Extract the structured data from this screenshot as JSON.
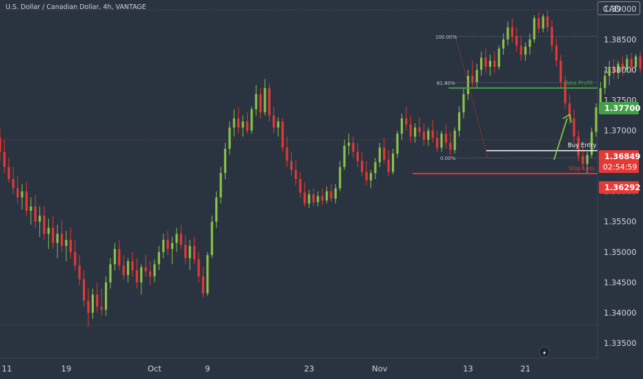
{
  "header": {
    "symbol_title": "U.S. Dollar / Canadian Dollar, 4h, VANTAGE",
    "currency": "CAD"
  },
  "colors": {
    "background": "#2a3340",
    "bull": "#8bc34a",
    "bear": "#e53935",
    "axis_text": "#d1d4dc",
    "take_profit": "#43a047",
    "stop_loss": "#e53935"
  },
  "price_axis": {
    "ticks": [
      "1.39000",
      "1.38500",
      "1.38000",
      "1.37500",
      "1.37000",
      "1.36500",
      "1.36000",
      "1.35500",
      "1.35000",
      "1.34500",
      "1.34000",
      "1.33500"
    ],
    "take_profit_tag": "1.37700",
    "current_price_tag": "1.36849",
    "countdown": "02:54:59",
    "stop_loss_tag": "1.36292"
  },
  "time_axis": {
    "labels": [
      "11",
      "19",
      "Oct",
      "9",
      "23",
      "Nov",
      "13",
      "21"
    ]
  },
  "chart_data": {
    "type": "candlestick",
    "symbol": "U.S. Dollar / Canadian Dollar",
    "timeframe": "4h",
    "source": "VANTAGE",
    "ylim": [
      1.3325,
      1.3915
    ],
    "grid": false,
    "candles": [
      {
        "o": 1.3688,
        "h": 1.3705,
        "l": 1.365,
        "c": 1.3665
      },
      {
        "o": 1.3665,
        "h": 1.3685,
        "l": 1.363,
        "c": 1.364
      },
      {
        "o": 1.364,
        "h": 1.3655,
        "l": 1.3615,
        "c": 1.362
      },
      {
        "o": 1.362,
        "h": 1.364,
        "l": 1.3595,
        "c": 1.3605
      },
      {
        "o": 1.3605,
        "h": 1.3625,
        "l": 1.358,
        "c": 1.359
      },
      {
        "o": 1.359,
        "h": 1.3612,
        "l": 1.357,
        "c": 1.36
      },
      {
        "o": 1.36,
        "h": 1.3615,
        "l": 1.356,
        "c": 1.3568
      },
      {
        "o": 1.3568,
        "h": 1.359,
        "l": 1.3545,
        "c": 1.3575
      },
      {
        "o": 1.3575,
        "h": 1.3595,
        "l": 1.354,
        "c": 1.355
      },
      {
        "o": 1.355,
        "h": 1.3575,
        "l": 1.3525,
        "c": 1.356
      },
      {
        "o": 1.356,
        "h": 1.3575,
        "l": 1.352,
        "c": 1.353
      },
      {
        "o": 1.353,
        "h": 1.3555,
        "l": 1.3505,
        "c": 1.354
      },
      {
        "o": 1.354,
        "h": 1.356,
        "l": 1.3505,
        "c": 1.3515
      },
      {
        "o": 1.3515,
        "h": 1.3545,
        "l": 1.349,
        "c": 1.353
      },
      {
        "o": 1.353,
        "h": 1.3552,
        "l": 1.35,
        "c": 1.351
      },
      {
        "o": 1.351,
        "h": 1.3535,
        "l": 1.3485,
        "c": 1.352
      },
      {
        "o": 1.352,
        "h": 1.354,
        "l": 1.349,
        "c": 1.35
      },
      {
        "o": 1.35,
        "h": 1.352,
        "l": 1.347,
        "c": 1.3478
      },
      {
        "o": 1.3478,
        "h": 1.3495,
        "l": 1.3445,
        "c": 1.3455
      },
      {
        "o": 1.3455,
        "h": 1.347,
        "l": 1.341,
        "c": 1.342
      },
      {
        "o": 1.342,
        "h": 1.344,
        "l": 1.3378,
        "c": 1.34
      },
      {
        "o": 1.34,
        "h": 1.344,
        "l": 1.339,
        "c": 1.343
      },
      {
        "o": 1.343,
        "h": 1.345,
        "l": 1.34,
        "c": 1.341
      },
      {
        "o": 1.341,
        "h": 1.344,
        "l": 1.3395,
        "c": 1.3405
      },
      {
        "o": 1.3405,
        "h": 1.346,
        "l": 1.3395,
        "c": 1.345
      },
      {
        "o": 1.345,
        "h": 1.349,
        "l": 1.344,
        "c": 1.348
      },
      {
        "o": 1.348,
        "h": 1.3515,
        "l": 1.347,
        "c": 1.3505
      },
      {
        "o": 1.3505,
        "h": 1.352,
        "l": 1.347,
        "c": 1.3478
      },
      {
        "o": 1.3478,
        "h": 1.3495,
        "l": 1.3455,
        "c": 1.3462
      },
      {
        "o": 1.3462,
        "h": 1.349,
        "l": 1.345,
        "c": 1.3485
      },
      {
        "o": 1.3485,
        "h": 1.35,
        "l": 1.346,
        "c": 1.347
      },
      {
        "o": 1.347,
        "h": 1.349,
        "l": 1.344,
        "c": 1.345
      },
      {
        "o": 1.345,
        "h": 1.348,
        "l": 1.343,
        "c": 1.3475
      },
      {
        "o": 1.3475,
        "h": 1.3495,
        "l": 1.346,
        "c": 1.3468
      },
      {
        "o": 1.3468,
        "h": 1.3485,
        "l": 1.3445,
        "c": 1.346
      },
      {
        "o": 1.346,
        "h": 1.3488,
        "l": 1.345,
        "c": 1.348
      },
      {
        "o": 1.348,
        "h": 1.351,
        "l": 1.347,
        "c": 1.35
      },
      {
        "o": 1.35,
        "h": 1.353,
        "l": 1.349,
        "c": 1.352
      },
      {
        "o": 1.352,
        "h": 1.3535,
        "l": 1.3495,
        "c": 1.3505
      },
      {
        "o": 1.3505,
        "h": 1.3525,
        "l": 1.348,
        "c": 1.3515
      },
      {
        "o": 1.3515,
        "h": 1.354,
        "l": 1.35,
        "c": 1.353
      },
      {
        "o": 1.353,
        "h": 1.3545,
        "l": 1.3505,
        "c": 1.3512
      },
      {
        "o": 1.3512,
        "h": 1.3528,
        "l": 1.348,
        "c": 1.349
      },
      {
        "o": 1.349,
        "h": 1.352,
        "l": 1.347,
        "c": 1.351
      },
      {
        "o": 1.351,
        "h": 1.3525,
        "l": 1.348,
        "c": 1.3488
      },
      {
        "o": 1.3488,
        "h": 1.35,
        "l": 1.345,
        "c": 1.346
      },
      {
        "o": 1.346,
        "h": 1.3475,
        "l": 1.3425,
        "c": 1.3432
      },
      {
        "o": 1.3432,
        "h": 1.35,
        "l": 1.3428,
        "c": 1.3495
      },
      {
        "o": 1.3495,
        "h": 1.356,
        "l": 1.349,
        "c": 1.355
      },
      {
        "o": 1.355,
        "h": 1.36,
        "l": 1.354,
        "c": 1.359
      },
      {
        "o": 1.359,
        "h": 1.364,
        "l": 1.358,
        "c": 1.363
      },
      {
        "o": 1.363,
        "h": 1.368,
        "l": 1.362,
        "c": 1.367
      },
      {
        "o": 1.367,
        "h": 1.3715,
        "l": 1.366,
        "c": 1.3705
      },
      {
        "o": 1.3705,
        "h": 1.3735,
        "l": 1.369,
        "c": 1.372
      },
      {
        "o": 1.372,
        "h": 1.3738,
        "l": 1.3695,
        "c": 1.3705
      },
      {
        "o": 1.3705,
        "h": 1.3725,
        "l": 1.369,
        "c": 1.3715
      },
      {
        "o": 1.3715,
        "h": 1.373,
        "l": 1.3695,
        "c": 1.37
      },
      {
        "o": 1.37,
        "h": 1.374,
        "l": 1.3695,
        "c": 1.3735
      },
      {
        "o": 1.3735,
        "h": 1.3775,
        "l": 1.3725,
        "c": 1.376
      },
      {
        "o": 1.376,
        "h": 1.377,
        "l": 1.372,
        "c": 1.373
      },
      {
        "o": 1.373,
        "h": 1.3785,
        "l": 1.3725,
        "c": 1.377
      },
      {
        "o": 1.377,
        "h": 1.3778,
        "l": 1.3715,
        "c": 1.3725
      },
      {
        "o": 1.3725,
        "h": 1.374,
        "l": 1.3695,
        "c": 1.3705
      },
      {
        "o": 1.3705,
        "h": 1.3722,
        "l": 1.369,
        "c": 1.3715
      },
      {
        "o": 1.3715,
        "h": 1.372,
        "l": 1.3665,
        "c": 1.3672
      },
      {
        "o": 1.3672,
        "h": 1.369,
        "l": 1.364,
        "c": 1.365
      },
      {
        "o": 1.365,
        "h": 1.3665,
        "l": 1.3625,
        "c": 1.3635
      },
      {
        "o": 1.3635,
        "h": 1.3652,
        "l": 1.361,
        "c": 1.362
      },
      {
        "o": 1.362,
        "h": 1.3632,
        "l": 1.359,
        "c": 1.3598
      },
      {
        "o": 1.3598,
        "h": 1.3615,
        "l": 1.3575,
        "c": 1.358
      },
      {
        "o": 1.358,
        "h": 1.3602,
        "l": 1.3572,
        "c": 1.3595
      },
      {
        "o": 1.3595,
        "h": 1.3605,
        "l": 1.3575,
        "c": 1.3582
      },
      {
        "o": 1.3582,
        "h": 1.36,
        "l": 1.3575,
        "c": 1.3592
      },
      {
        "o": 1.3592,
        "h": 1.3605,
        "l": 1.3578,
        "c": 1.3585
      },
      {
        "o": 1.3585,
        "h": 1.3608,
        "l": 1.358,
        "c": 1.36
      },
      {
        "o": 1.36,
        "h": 1.3612,
        "l": 1.3582,
        "c": 1.3588
      },
      {
        "o": 1.3588,
        "h": 1.3612,
        "l": 1.358,
        "c": 1.3605
      },
      {
        "o": 1.3605,
        "h": 1.365,
        "l": 1.36,
        "c": 1.364
      },
      {
        "o": 1.364,
        "h": 1.3685,
        "l": 1.3635,
        "c": 1.3675
      },
      {
        "o": 1.3675,
        "h": 1.3695,
        "l": 1.366,
        "c": 1.368
      },
      {
        "o": 1.368,
        "h": 1.369,
        "l": 1.3655,
        "c": 1.3665
      },
      {
        "o": 1.3665,
        "h": 1.368,
        "l": 1.364,
        "c": 1.365
      },
      {
        "o": 1.365,
        "h": 1.3665,
        "l": 1.3625,
        "c": 1.3632
      },
      {
        "o": 1.3632,
        "h": 1.365,
        "l": 1.361,
        "c": 1.3618
      },
      {
        "o": 1.3618,
        "h": 1.3635,
        "l": 1.3605,
        "c": 1.363
      },
      {
        "o": 1.363,
        "h": 1.3655,
        "l": 1.362,
        "c": 1.3648
      },
      {
        "o": 1.3648,
        "h": 1.368,
        "l": 1.364,
        "c": 1.3672
      },
      {
        "o": 1.3672,
        "h": 1.3688,
        "l": 1.3645,
        "c": 1.3652
      },
      {
        "o": 1.3652,
        "h": 1.3668,
        "l": 1.3625,
        "c": 1.3632
      },
      {
        "o": 1.3632,
        "h": 1.367,
        "l": 1.3628,
        "c": 1.3662
      },
      {
        "o": 1.3662,
        "h": 1.37,
        "l": 1.3655,
        "c": 1.3695
      },
      {
        "o": 1.3695,
        "h": 1.3728,
        "l": 1.3685,
        "c": 1.372
      },
      {
        "o": 1.372,
        "h": 1.374,
        "l": 1.37,
        "c": 1.371
      },
      {
        "o": 1.371,
        "h": 1.3725,
        "l": 1.368,
        "c": 1.369
      },
      {
        "o": 1.369,
        "h": 1.3712,
        "l": 1.368,
        "c": 1.3705
      },
      {
        "o": 1.3705,
        "h": 1.3722,
        "l": 1.369,
        "c": 1.3698
      },
      {
        "o": 1.3698,
        "h": 1.3712,
        "l": 1.3675,
        "c": 1.3685
      },
      {
        "o": 1.3685,
        "h": 1.3705,
        "l": 1.3675,
        "c": 1.37
      },
      {
        "o": 1.37,
        "h": 1.3718,
        "l": 1.368,
        "c": 1.3688
      },
      {
        "o": 1.3688,
        "h": 1.37,
        "l": 1.3665,
        "c": 1.3672
      },
      {
        "o": 1.3672,
        "h": 1.37,
        "l": 1.3665,
        "c": 1.3695
      },
      {
        "o": 1.3695,
        "h": 1.371,
        "l": 1.367,
        "c": 1.368
      },
      {
        "o": 1.368,
        "h": 1.3698,
        "l": 1.366,
        "c": 1.3668
      },
      {
        "o": 1.3668,
        "h": 1.3705,
        "l": 1.3662,
        "c": 1.37
      },
      {
        "o": 1.37,
        "h": 1.374,
        "l": 1.369,
        "c": 1.373
      },
      {
        "o": 1.373,
        "h": 1.377,
        "l": 1.372,
        "c": 1.376
      },
      {
        "o": 1.376,
        "h": 1.38,
        "l": 1.375,
        "c": 1.379
      },
      {
        "o": 1.379,
        "h": 1.3815,
        "l": 1.3772,
        "c": 1.378
      },
      {
        "o": 1.378,
        "h": 1.381,
        "l": 1.377,
        "c": 1.38
      },
      {
        "o": 1.38,
        "h": 1.383,
        "l": 1.379,
        "c": 1.382
      },
      {
        "o": 1.382,
        "h": 1.3835,
        "l": 1.3795,
        "c": 1.3805
      },
      {
        "o": 1.3805,
        "h": 1.3825,
        "l": 1.379,
        "c": 1.3815
      },
      {
        "o": 1.3815,
        "h": 1.383,
        "l": 1.3795,
        "c": 1.3805
      },
      {
        "o": 1.3805,
        "h": 1.384,
        "l": 1.38,
        "c": 1.3835
      },
      {
        "o": 1.3835,
        "h": 1.386,
        "l": 1.3825,
        "c": 1.385
      },
      {
        "o": 1.385,
        "h": 1.388,
        "l": 1.384,
        "c": 1.387
      },
      {
        "o": 1.387,
        "h": 1.3885,
        "l": 1.3845,
        "c": 1.3855
      },
      {
        "o": 1.3855,
        "h": 1.387,
        "l": 1.383,
        "c": 1.384
      },
      {
        "o": 1.384,
        "h": 1.3855,
        "l": 1.3815,
        "c": 1.3825
      },
      {
        "o": 1.3825,
        "h": 1.3845,
        "l": 1.3815,
        "c": 1.3838
      },
      {
        "o": 1.3838,
        "h": 1.386,
        "l": 1.3825,
        "c": 1.385
      },
      {
        "o": 1.385,
        "h": 1.389,
        "l": 1.3845,
        "c": 1.3885
      },
      {
        "o": 1.3885,
        "h": 1.3895,
        "l": 1.386,
        "c": 1.3868
      },
      {
        "o": 1.3868,
        "h": 1.3892,
        "l": 1.3862,
        "c": 1.3888
      },
      {
        "o": 1.3888,
        "h": 1.3898,
        "l": 1.3862,
        "c": 1.387
      },
      {
        "o": 1.387,
        "h": 1.3882,
        "l": 1.383,
        "c": 1.384
      },
      {
        "o": 1.384,
        "h": 1.3852,
        "l": 1.3805,
        "c": 1.3815
      },
      {
        "o": 1.3815,
        "h": 1.3825,
        "l": 1.377,
        "c": 1.378
      },
      {
        "o": 1.378,
        "h": 1.379,
        "l": 1.3735,
        "c": 1.3745
      },
      {
        "o": 1.3745,
        "h": 1.376,
        "l": 1.371,
        "c": 1.372
      },
      {
        "o": 1.372,
        "h": 1.3735,
        "l": 1.368,
        "c": 1.369
      },
      {
        "o": 1.369,
        "h": 1.37,
        "l": 1.365,
        "c": 1.3658
      },
      {
        "o": 1.3658,
        "h": 1.3672,
        "l": 1.3636,
        "c": 1.3645
      },
      {
        "o": 1.3645,
        "h": 1.3665,
        "l": 1.3629,
        "c": 1.366
      },
      {
        "o": 1.366,
        "h": 1.3705,
        "l": 1.3655,
        "c": 1.3698
      },
      {
        "o": 1.3698,
        "h": 1.3745,
        "l": 1.369,
        "c": 1.3738
      },
      {
        "o": 1.3738,
        "h": 1.378,
        "l": 1.373,
        "c": 1.377
      },
      {
        "o": 1.377,
        "h": 1.38,
        "l": 1.376,
        "c": 1.379
      },
      {
        "o": 1.379,
        "h": 1.3815,
        "l": 1.3775,
        "c": 1.3805
      },
      {
        "o": 1.3805,
        "h": 1.3818,
        "l": 1.3785,
        "c": 1.3795
      },
      {
        "o": 1.3795,
        "h": 1.3815,
        "l": 1.3785,
        "c": 1.381
      },
      {
        "o": 1.381,
        "h": 1.3822,
        "l": 1.379,
        "c": 1.38
      },
      {
        "o": 1.38,
        "h": 1.3825,
        "l": 1.3795,
        "c": 1.3818
      },
      {
        "o": 1.3818,
        "h": 1.3828,
        "l": 1.3795,
        "c": 1.3805
      },
      {
        "o": 1.3805,
        "h": 1.3826,
        "l": 1.3798,
        "c": 1.3822
      },
      {
        "o": 1.3822,
        "h": 1.383,
        "l": 1.3795,
        "c": 1.3802
      },
      {
        "o": 1.3802,
        "h": 1.3815,
        "l": 1.379,
        "c": 1.381
      },
      {
        "o": 1.381,
        "h": 1.3835,
        "l": 1.38,
        "c": 1.3825
      },
      {
        "o": 1.3825,
        "h": 1.3848,
        "l": 1.379,
        "c": 1.3795
      },
      {
        "o": 1.3795,
        "h": 1.38,
        "l": 1.374,
        "c": 1.3748
      },
      {
        "o": 1.3748,
        "h": 1.3755,
        "l": 1.37,
        "c": 1.371
      },
      {
        "o": 1.371,
        "h": 1.3722,
        "l": 1.368,
        "c": 1.369
      },
      {
        "o": 1.369,
        "h": 1.37,
        "l": 1.3665,
        "c": 1.3675
      },
      {
        "o": 1.3675,
        "h": 1.371,
        "l": 1.3668,
        "c": 1.3702
      },
      {
        "o": 1.3702,
        "h": 1.3715,
        "l": 1.368,
        "c": 1.3688
      },
      {
        "o": 1.3688,
        "h": 1.37,
        "l": 1.366,
        "c": 1.3672
      },
      {
        "o": 1.3672,
        "h": 1.37,
        "l": 1.3662,
        "c": 1.3695
      },
      {
        "o": 1.3695,
        "h": 1.374,
        "l": 1.3688,
        "c": 1.3732
      },
      {
        "o": 1.3732,
        "h": 1.3762,
        "l": 1.3722,
        "c": 1.3752
      },
      {
        "o": 1.3752,
        "h": 1.3765,
        "l": 1.373,
        "c": 1.374
      },
      {
        "o": 1.374,
        "h": 1.3755,
        "l": 1.372,
        "c": 1.3728
      },
      {
        "o": 1.3728,
        "h": 1.3745,
        "l": 1.371,
        "c": 1.3735
      },
      {
        "o": 1.3735,
        "h": 1.3748,
        "l": 1.3705,
        "c": 1.3712
      },
      {
        "o": 1.3712,
        "h": 1.3728,
        "l": 1.3695,
        "c": 1.372
      },
      {
        "o": 1.372,
        "h": 1.3735,
        "l": 1.3702,
        "c": 1.3708
      },
      {
        "o": 1.3708,
        "h": 1.3725,
        "l": 1.3695,
        "c": 1.3718
      },
      {
        "o": 1.3718,
        "h": 1.374,
        "l": 1.3705,
        "c": 1.3712
      },
      {
        "o": 1.3712,
        "h": 1.3728,
        "l": 1.369,
        "c": 1.37
      },
      {
        "o": 1.37,
        "h": 1.3735,
        "l": 1.3695,
        "c": 1.3728
      },
      {
        "o": 1.3728,
        "h": 1.3745,
        "l": 1.3708,
        "c": 1.3715
      },
      {
        "o": 1.3715,
        "h": 1.373,
        "l": 1.3695,
        "c": 1.3705
      },
      {
        "o": 1.3705,
        "h": 1.3722,
        "l": 1.369,
        "c": 1.3712
      },
      {
        "o": 1.3712,
        "h": 1.3725,
        "l": 1.3688,
        "c": 1.3695
      },
      {
        "o": 1.3695,
        "h": 1.3742,
        "l": 1.369,
        "c": 1.3735
      },
      {
        "o": 1.3735,
        "h": 1.3765,
        "l": 1.37,
        "c": 1.3705
      },
      {
        "o": 1.3705,
        "h": 1.3712,
        "l": 1.368,
        "c": 1.3688
      },
      {
        "o": 1.3688,
        "h": 1.3695,
        "l": 1.3679,
        "c": 1.3685
      }
    ],
    "annotations": {
      "fib_top_label": "100.00%",
      "fib_mid_label": "61.80%",
      "fib_bottom_label": "0.00%",
      "fib_top_price": 1.3855,
      "fib_mid_price": 1.3779,
      "fib_bottom_price": 1.3655,
      "take_profit_label": "Take Profit",
      "take_profit_price": 1.377,
      "buy_entry_label": "Buy Entry",
      "buy_entry_price": 1.3667,
      "stop_loss_label": "Stop Loss",
      "stop_loss_price": 1.36292,
      "current_price": 1.36849,
      "resistance_price": 1.3899,
      "support_price": 1.338
    }
  }
}
